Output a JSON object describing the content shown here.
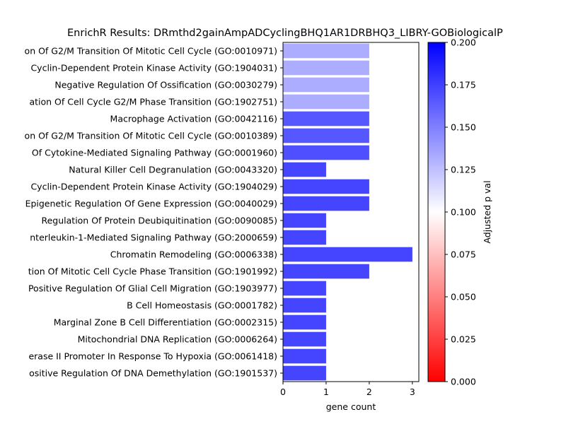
{
  "chart_data": {
    "type": "bar",
    "orientation": "horizontal",
    "title": "EnrichR Results: DRmthd2gainAmpADCyclingBHQ1AR1DRBHQ3_LIBRY-GOBiologicalP",
    "xlabel": "gene count",
    "ylabel": "",
    "xlim": [
      0,
      3.15
    ],
    "xticks": [
      "0",
      "1",
      "2",
      "3"
    ],
    "grid": false,
    "categories": [
      "on Of G2/M Transition Of Mitotic Cell Cycle (GO:0010971)",
      "Cyclin-Dependent Protein Kinase Activity (GO:1904031)",
      "Negative Regulation Of Ossification (GO:0030279)",
      "ation Of Cell Cycle G2/M Phase Transition (GO:1902751)",
      "Macrophage Activation (GO:0042116)",
      "on Of G2/M Transition Of Mitotic Cell Cycle (GO:0010389)",
      "Of Cytokine-Mediated Signaling Pathway (GO:0001960)",
      "Natural Killer Cell Degranulation (GO:0043320)",
      "Cyclin-Dependent Protein Kinase Activity (GO:1904029)",
      "Epigenetic Regulation Of Gene Expression (GO:0040029)",
      "Regulation Of Protein Deubiquitination (GO:0090085)",
      "nterleukin-1-Mediated Signaling Pathway (GO:2000659)",
      "Chromatin Remodeling (GO:0006338)",
      "tion Of Mitotic Cell Cycle Phase Transition (GO:1901992)",
      "Positive Regulation Of Glial Cell Migration (GO:1903977)",
      "B Cell Homeostasis (GO:0001782)",
      "Marginal Zone B Cell Differentiation (GO:0002315)",
      "Mitochondrial DNA Replication (GO:0006264)",
      "erase II Promoter In Response To Hypoxia (GO:0061418)",
      "ositive Regulation Of DNA Demethylation (GO:1901537)"
    ],
    "values": [
      2,
      2,
      2,
      2,
      2,
      2,
      2,
      1,
      2,
      2,
      1,
      1,
      3,
      2,
      1,
      1,
      1,
      1,
      1,
      1
    ],
    "adjusted_p": [
      0.132,
      0.132,
      0.132,
      0.132,
      0.166,
      0.166,
      0.169,
      0.173,
      0.173,
      0.173,
      0.173,
      0.173,
      0.173,
      0.173,
      0.173,
      0.173,
      0.173,
      0.173,
      0.173,
      0.173
    ],
    "colorbar": {
      "label": "Adjusted p val",
      "range": [
        0.0,
        0.2
      ],
      "ticks": [
        "0.000",
        "0.025",
        "0.050",
        "0.075",
        "0.100",
        "0.125",
        "0.150",
        "0.175",
        "0.200"
      ],
      "colormap": [
        "#ff0000",
        "#ffffff",
        "#0000ff"
      ]
    }
  }
}
